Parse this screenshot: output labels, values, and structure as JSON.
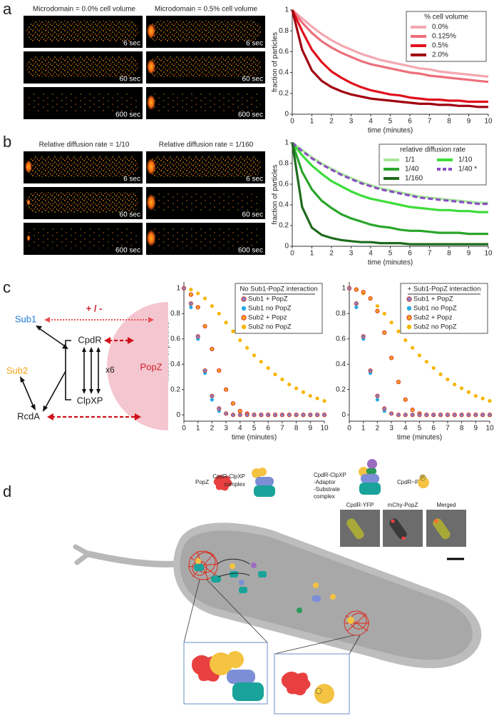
{
  "panel_labels": [
    "a",
    "b",
    "c",
    "d"
  ],
  "panel_a": {
    "column_titles": [
      "Microdomain = 0.0% cell volume",
      "Microdomain = 0.5% cell volume"
    ],
    "time_labels": [
      "6 sec",
      "60 sec",
      "600 sec"
    ]
  },
  "panel_b": {
    "column_titles": [
      "Relative diffusion rate = 1/10",
      "Relative diffusion rate = 1/160"
    ],
    "time_labels": [
      "6 sec",
      "60 sec",
      "600 sec"
    ]
  },
  "panel_c_diagram": {
    "nodes": [
      "Sub1",
      "Sub2",
      "CpdR",
      "ClpXP",
      "RcdA",
      "PopZ"
    ],
    "multiplier": "x6",
    "interaction": "+ / -"
  },
  "panel_d": {
    "legend": [
      [
        "PopZ"
      ],
      [
        "CpdR-ClpXP",
        "complex"
      ],
      [
        "CpdR-ClpXP",
        "-Adaptor",
        "-Substrate",
        "complex"
      ],
      [
        "CpdR~P"
      ]
    ],
    "micrograph_labels": [
      "CpdR-YFP",
      "mChy-PopZ",
      "Merged"
    ],
    "phospho_label": "P"
  },
  "chart_data": [
    {
      "type": "line",
      "xlabel": "time (minutes)",
      "ylabel": "fraction of particles",
      "legend_title": "% cell volume",
      "legend": "upper right",
      "x": [
        0,
        0.5,
        1,
        1.5,
        2,
        2.5,
        3,
        3.5,
        4,
        4.5,
        5,
        5.5,
        6,
        6.5,
        7,
        7.5,
        8,
        8.5,
        9,
        9.5,
        10
      ],
      "xlim": [
        0,
        10
      ],
      "xticks": [
        0,
        1,
        2,
        3,
        4,
        5,
        6,
        7,
        8,
        9,
        10
      ],
      "ylim": [
        0,
        1
      ],
      "yticks": [
        0,
        0.2,
        0.4,
        0.6,
        0.8,
        1
      ],
      "series": [
        {
          "name": "0.0%",
          "color": "#f4a7b0",
          "values": [
            1.0,
            0.92,
            0.84,
            0.77,
            0.71,
            0.66,
            0.62,
            0.58,
            0.55,
            0.52,
            0.5,
            0.48,
            0.46,
            0.44,
            0.43,
            0.41,
            0.4,
            0.39,
            0.38,
            0.37,
            0.36
          ]
        },
        {
          "name": "0.125%",
          "color": "#ec6f7a",
          "values": [
            1.0,
            0.88,
            0.78,
            0.7,
            0.64,
            0.59,
            0.55,
            0.51,
            0.48,
            0.46,
            0.44,
            0.42,
            0.4,
            0.39,
            0.37,
            0.36,
            0.35,
            0.34,
            0.33,
            0.32,
            0.31
          ]
        },
        {
          "name": "0.5%",
          "color": "#e0101c",
          "values": [
            1.0,
            0.8,
            0.62,
            0.5,
            0.41,
            0.35,
            0.3,
            0.26,
            0.23,
            0.21,
            0.19,
            0.18,
            0.16,
            0.15,
            0.14,
            0.14,
            0.13,
            0.13,
            0.12,
            0.12,
            0.12
          ]
        },
        {
          "name": "2.0%",
          "color": "#a00010",
          "values": [
            1.0,
            0.62,
            0.42,
            0.32,
            0.26,
            0.22,
            0.19,
            0.17,
            0.15,
            0.14,
            0.13,
            0.12,
            0.11,
            0.1,
            0.1,
            0.09,
            0.09,
            0.08,
            0.08,
            0.07,
            0.07
          ]
        }
      ]
    },
    {
      "type": "line",
      "xlabel": "time (minutes)",
      "ylabel": "fraction of particles",
      "legend_title": "relative diffusion rate",
      "legend": "upper right",
      "legend_columns": 2,
      "x": [
        0,
        0.5,
        1,
        1.5,
        2,
        2.5,
        3,
        3.5,
        4,
        4.5,
        5,
        5.5,
        6,
        6.5,
        7,
        7.5,
        8,
        8.5,
        9,
        9.5,
        10
      ],
      "xlim": [
        0,
        10
      ],
      "xticks": [
        0,
        1,
        2,
        3,
        4,
        5,
        6,
        7,
        8,
        9,
        10
      ],
      "ylim": [
        0,
        1
      ],
      "yticks": [
        0,
        0.2,
        0.4,
        0.6,
        0.8,
        1
      ],
      "series": [
        {
          "name": "1/1",
          "color": "#a8e89a",
          "values": [
            1.0,
            0.93,
            0.86,
            0.8,
            0.75,
            0.7,
            0.66,
            0.62,
            0.59,
            0.56,
            0.54,
            0.52,
            0.5,
            0.48,
            0.47,
            0.46,
            0.45,
            0.44,
            0.43,
            0.42,
            0.42
          ]
        },
        {
          "name": "1/10",
          "color": "#3ddc3a",
          "values": [
            1.0,
            0.88,
            0.78,
            0.7,
            0.63,
            0.58,
            0.53,
            0.49,
            0.46,
            0.44,
            0.42,
            0.4,
            0.38,
            0.37,
            0.36,
            0.35,
            0.35,
            0.34,
            0.34,
            0.33,
            0.33
          ]
        },
        {
          "name": "1/40",
          "color": "#2aa52a",
          "values": [
            1.0,
            0.72,
            0.55,
            0.44,
            0.37,
            0.31,
            0.27,
            0.24,
            0.21,
            0.19,
            0.18,
            0.16,
            0.15,
            0.15,
            0.14,
            0.13,
            0.13,
            0.13,
            0.12,
            0.12,
            0.12
          ]
        },
        {
          "name": "1/40 *",
          "color": "#8a4fc0",
          "line_style": "dashed",
          "values": [
            1.0,
            0.92,
            0.85,
            0.79,
            0.74,
            0.69,
            0.65,
            0.61,
            0.58,
            0.55,
            0.53,
            0.51,
            0.49,
            0.47,
            0.46,
            0.45,
            0.44,
            0.43,
            0.42,
            0.41,
            0.41
          ]
        },
        {
          "name": "1/160",
          "color": "#1e6b1e",
          "values": [
            1.0,
            0.38,
            0.18,
            0.11,
            0.08,
            0.06,
            0.05,
            0.04,
            0.04,
            0.03,
            0.03,
            0.03,
            0.02,
            0.02,
            0.02,
            0.02,
            0.02,
            0.02,
            0.02,
            0.02,
            0.02
          ]
        }
      ]
    },
    {
      "type": "scatter",
      "xlabel": "time (minutes)",
      "ylabel": "fraction of particles",
      "legend_title": "No Sub1-PopZ interaction",
      "legend": "upper right",
      "x": [
        0,
        0.5,
        1,
        1.5,
        2,
        2.5,
        3,
        3.5,
        4,
        4.5,
        5,
        5.5,
        6,
        6.5,
        7,
        7.5,
        8,
        8.5,
        9,
        9.5,
        10
      ],
      "xlim": [
        0,
        10
      ],
      "xticks": [
        0,
        1,
        2,
        3,
        4,
        5,
        6,
        7,
        8,
        9,
        10
      ],
      "ylim": [
        -0.05,
        1.05
      ],
      "yticks": [
        0,
        0.2,
        0.4,
        0.6,
        0.8,
        1
      ],
      "series": [
        {
          "name": "Sub2 no PopZ",
          "color": "#f7b500",
          "values": [
            1.0,
            0.99,
            0.96,
            0.92,
            0.86,
            0.8,
            0.73,
            0.66,
            0.59,
            0.53,
            0.47,
            0.42,
            0.37,
            0.32,
            0.28,
            0.24,
            0.21,
            0.18,
            0.15,
            0.13,
            0.11
          ]
        },
        {
          "name": "Sub2 + Popz",
          "color": "#f5a623",
          "edgecolor": "#e0301e",
          "values": [
            1.0,
            0.95,
            0.85,
            0.7,
            0.52,
            0.35,
            0.2,
            0.09,
            0.03,
            0.01,
            0,
            0,
            0,
            0,
            0,
            0,
            0,
            0,
            0,
            0,
            0
          ]
        },
        {
          "name": "Sub1 no PopZ",
          "color": "#29abe2",
          "values": [
            1.0,
            0.85,
            0.6,
            0.33,
            0.12,
            0.03,
            0.01,
            0,
            0,
            0,
            0,
            0,
            0,
            0,
            0,
            0,
            0,
            0,
            0,
            0,
            0
          ]
        },
        {
          "name": "Sub1 + PopZ",
          "color": "#8a7fc8",
          "edgecolor": "#d0402e",
          "values": [
            1.0,
            0.88,
            0.62,
            0.35,
            0.15,
            0.05,
            0.01,
            0,
            0,
            0,
            0,
            0,
            0,
            0,
            0,
            0,
            0,
            0,
            0,
            0,
            0
          ]
        }
      ]
    },
    {
      "type": "scatter",
      "xlabel": "time (minutes)",
      "legend_title": "+ Sub1-PopZ interaction",
      "legend": "upper right",
      "x": [
        0,
        0.5,
        1,
        1.5,
        2,
        2.5,
        3,
        3.5,
        4,
        4.5,
        5,
        5.5,
        6,
        6.5,
        7,
        7.5,
        8,
        8.5,
        9,
        9.5,
        10
      ],
      "xlim": [
        0,
        10
      ],
      "xticks": [
        0,
        1,
        2,
        3,
        4,
        5,
        6,
        7,
        8,
        9,
        10
      ],
      "ylim": [
        -0.05,
        1.05
      ],
      "yticks": [
        0,
        0.2,
        0.4,
        0.6,
        0.8,
        1
      ],
      "series": [
        {
          "name": "Sub2 no PopZ",
          "color": "#f7b500",
          "values": [
            1.0,
            0.99,
            0.96,
            0.92,
            0.86,
            0.8,
            0.73,
            0.66,
            0.59,
            0.53,
            0.47,
            0.42,
            0.37,
            0.32,
            0.28,
            0.24,
            0.21,
            0.18,
            0.15,
            0.13,
            0.11
          ]
        },
        {
          "name": "Sub2 + Popz",
          "color": "#f5a623",
          "edgecolor": "#e0301e",
          "values": [
            1.0,
            0.99,
            0.97,
            0.92,
            0.82,
            0.65,
            0.45,
            0.26,
            0.12,
            0.04,
            0.01,
            0,
            0,
            0,
            0,
            0,
            0,
            0,
            0,
            0,
            0
          ]
        },
        {
          "name": "Sub1 no PopZ",
          "color": "#29abe2",
          "values": [
            1.0,
            0.85,
            0.6,
            0.33,
            0.12,
            0.03,
            0.01,
            0,
            0,
            0,
            0,
            0,
            0,
            0,
            0,
            0,
            0,
            0,
            0,
            0,
            0
          ]
        },
        {
          "name": "Sub1 + PopZ",
          "color": "#8a7fc8",
          "edgecolor": "#d0402e",
          "values": [
            1.0,
            0.88,
            0.62,
            0.35,
            0.15,
            0.05,
            0.01,
            0,
            0,
            0,
            0,
            0,
            0,
            0,
            0,
            0,
            0,
            0,
            0,
            0,
            0
          ]
        }
      ]
    }
  ]
}
